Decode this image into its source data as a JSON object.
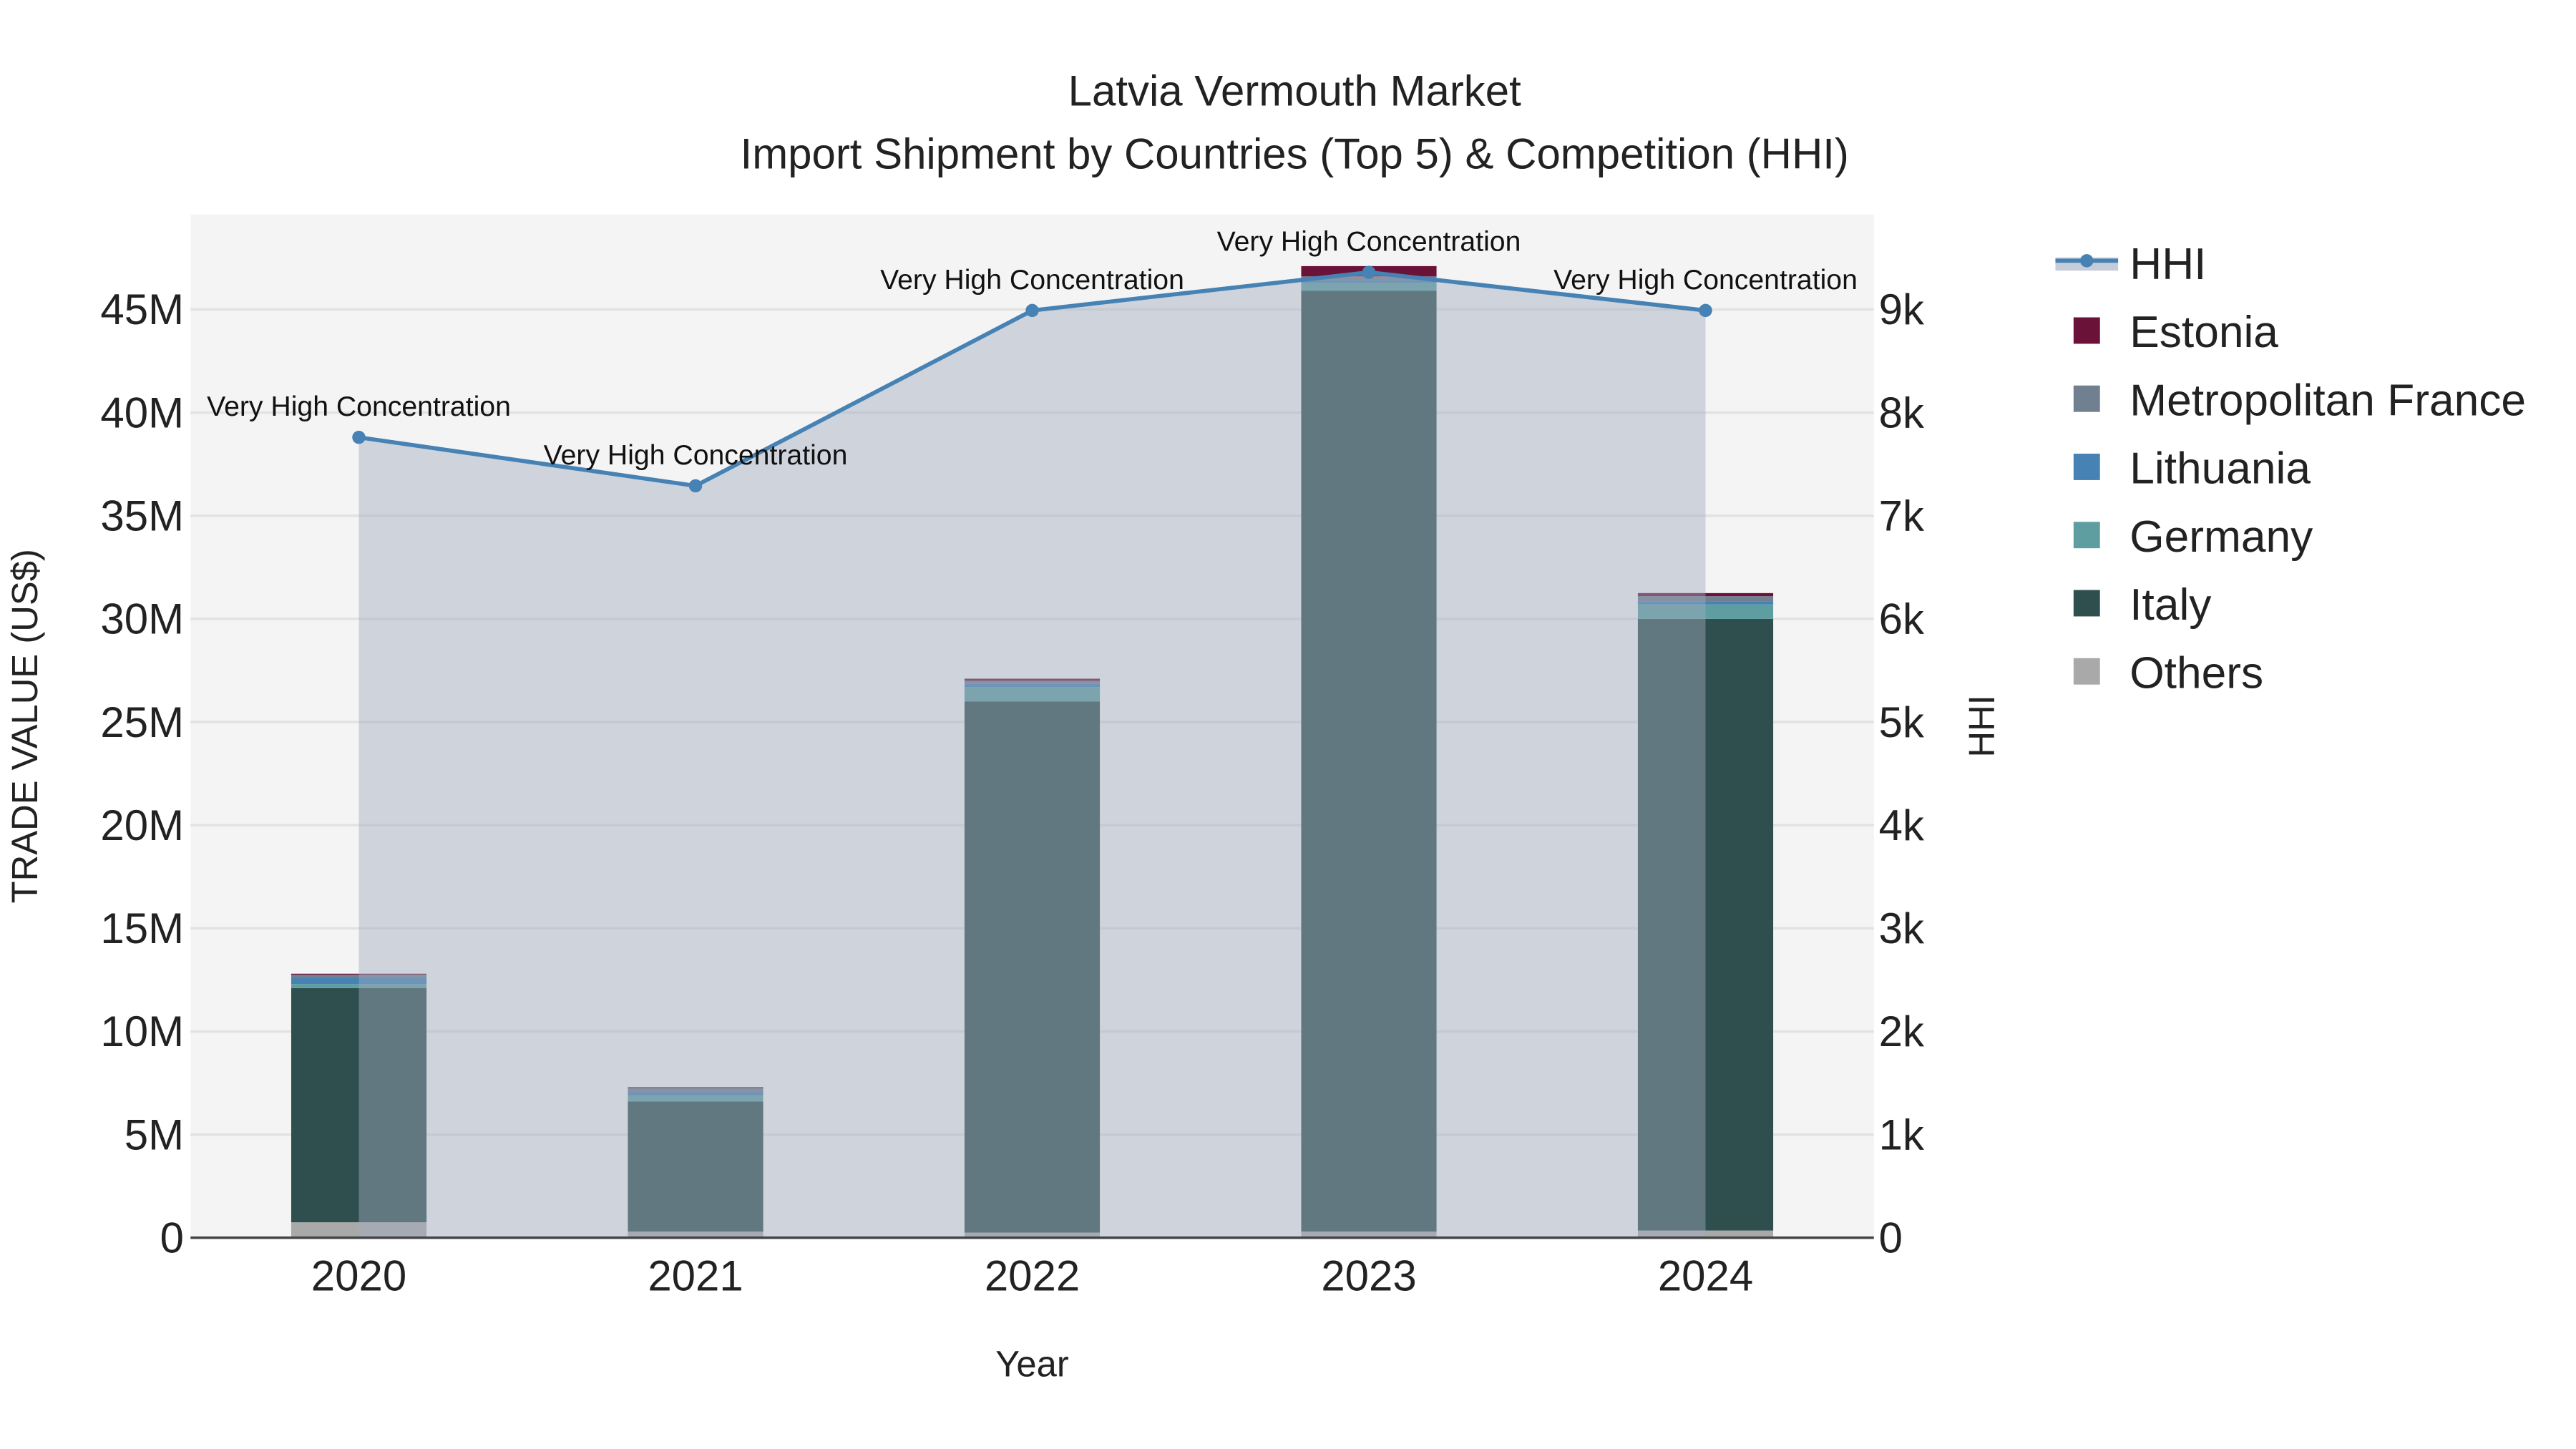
{
  "chart_data": {
    "type": "bar",
    "title": "Latvia Vermouth Market",
    "subtitle": "Import Shipment by Countries (Top 5) & Competition (HHI)",
    "xlabel": "Year",
    "ylabel": "TRADE VALUE (US$)",
    "y2label": "HHI",
    "categories": [
      "2020",
      "2021",
      "2022",
      "2023",
      "2024"
    ],
    "ylim": [
      0,
      49600000
    ],
    "y2lim": [
      0,
      9920
    ],
    "yticks": [
      0,
      5000000,
      10000000,
      15000000,
      20000000,
      25000000,
      30000000,
      35000000,
      40000000,
      45000000
    ],
    "ytick_labels": [
      "0",
      "5M",
      "10M",
      "15M",
      "20M",
      "25M",
      "30M",
      "35M",
      "40M",
      "45M"
    ],
    "y2ticks": [
      0,
      1000,
      2000,
      3000,
      4000,
      5000,
      6000,
      7000,
      8000,
      9000
    ],
    "y2tick_labels": [
      "0",
      "1k",
      "2k",
      "3k",
      "4k",
      "5k",
      "6k",
      "7k",
      "8k",
      "9k"
    ],
    "grid": true,
    "legend_position": "right",
    "series": [
      {
        "name": "Others",
        "color": "#a9a9a9",
        "values": [
          750000,
          300000,
          250000,
          300000,
          350000
        ]
      },
      {
        "name": "Italy",
        "color": "#2f4f4f",
        "values": [
          11350000,
          6300000,
          25750000,
          45600000,
          29650000
        ]
      },
      {
        "name": "Germany",
        "color": "#5f9ea0",
        "values": [
          200000,
          300000,
          700000,
          400000,
          700000
        ]
      },
      {
        "name": "Lithuania",
        "color": "#4682b4",
        "values": [
          300000,
          150000,
          150000,
          100000,
          150000
        ]
      },
      {
        "name": "Metropolitan France",
        "color": "#708090",
        "values": [
          150000,
          200000,
          150000,
          200000,
          250000
        ]
      },
      {
        "name": "Estonia",
        "color": "#6a1238",
        "values": [
          50000,
          50000,
          100000,
          500000,
          150000
        ]
      }
    ],
    "hhi": {
      "name": "HHI",
      "color": "#4682b4",
      "values": [
        7760,
        7290,
        8990,
        9360,
        8990
      ],
      "annotations": [
        "Very High Concentration",
        "Very High Concentration",
        "Very High Concentration",
        "Very High Concentration",
        "Very High Concentration"
      ]
    },
    "legend": [
      "HHI",
      "Estonia",
      "Metropolitan France",
      "Lithuania",
      "Germany",
      "Italy",
      "Others"
    ]
  }
}
